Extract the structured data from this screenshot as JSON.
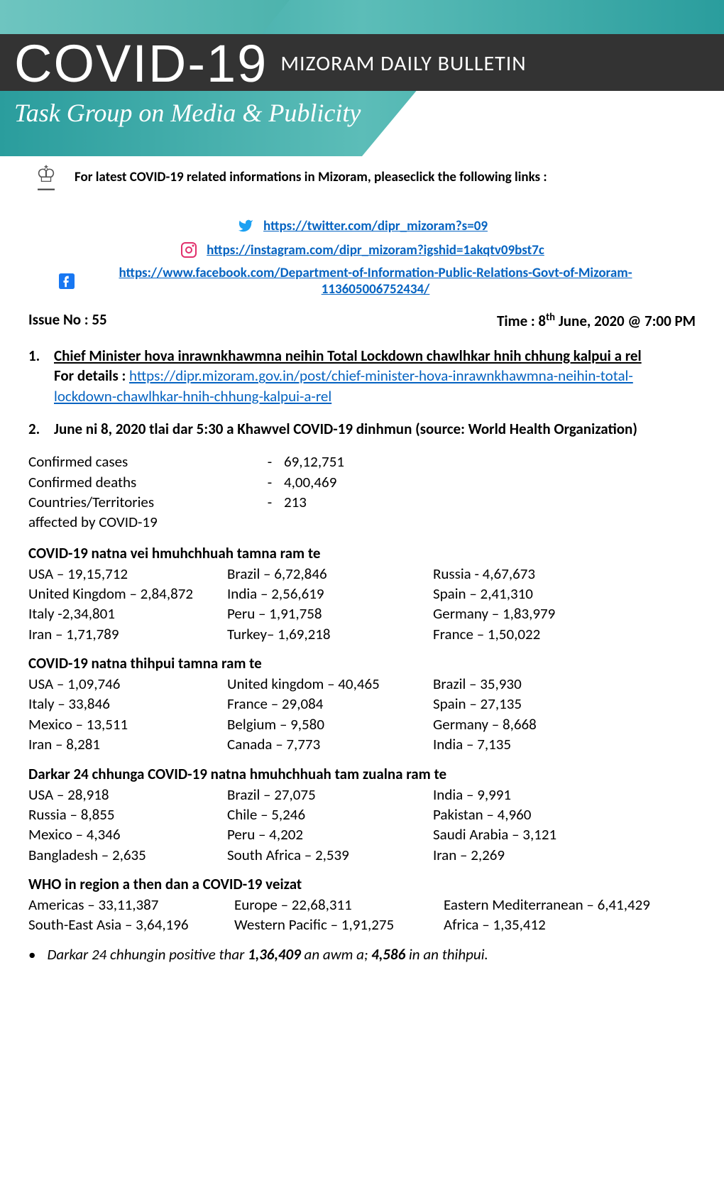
{
  "banner": {
    "title_main": "COVID-19",
    "title_sub": "MIZORAM DAILY BULLETIN",
    "task_group": "Task Group on Media & Publicity",
    "colors": {
      "teal_dark": "#2a9d9d",
      "teal_light": "#5cbdb8",
      "bar": "#333333",
      "text": "#ffffff"
    }
  },
  "info_line": "For latest COVID-19 related informations in Mizoram, pleaseclick the following links :",
  "links": {
    "twitter": "https://twitter.com/dipr_mizoram?s=09",
    "instagram": "https://instagram.com/dipr_mizoram?igshid=1akqtv09bst7c",
    "facebook": "https://www.facebook.com/Department-of-Information-Public-Relations-Govt-of-Mizoram-113605006752434/"
  },
  "issue": {
    "no_label": "Issue No : 55",
    "time_prefix": "Time : 8",
    "time_sup": "th",
    "time_suffix": " June, 2020  @ 7:00 PM"
  },
  "item1": {
    "num": "1.",
    "title": "Chief Minister hova inrawnkhawmna neihin Total Lockdown chawlhkar hnih chhung kalpui a rel",
    "details_label": "For details : ",
    "details_link": "https://dipr.mizoram.gov.in/post/chief-minister-hova-inrawnkhawmna-neihin-total-lockdown-chawlhkar-hnih-chhung-kalpui-a-rel"
  },
  "item2": {
    "num": "2.",
    "title": "June ni 8, 2020 tlai dar 5:30 a Khawvel COVID-19 dinhmun  (source: World Health Organization)"
  },
  "global_stats": [
    {
      "label": "Confirmed cases",
      "value": "69,12,751"
    },
    {
      "label": "Confirmed deaths",
      "value": "4,00,469"
    },
    {
      "label": "Countries/Territories",
      "value": "213"
    },
    {
      "label": "affected by COVID-19",
      "value": ""
    }
  ],
  "sections": {
    "cases": {
      "title": "COVID-19 natna vei hmuhchhuah tamna ram te",
      "rows": [
        [
          "USA – 19,15,712",
          "Brazil – 6,72,846",
          "Russia - 4,67,673"
        ],
        [
          "United Kingdom – 2,84,872",
          "India – 2,56,619",
          "Spain – 2,41,310"
        ],
        [
          "Italy -2,34,801",
          "Peru – 1,91,758",
          "Germany – 1,83,979"
        ],
        [
          "Iran  – 1,71,789",
          "Turkey– 1,69,218",
          "France – 1,50,022"
        ]
      ]
    },
    "deaths": {
      "title": "COVID-19 natna thihpui tamna ram te",
      "rows": [
        [
          "USA – 1,09,746",
          "United kingdom – 40,465",
          "Brazil – 35,930"
        ],
        [
          "Italy – 33,846",
          "France – 29,084",
          "Spain – 27,135"
        ],
        [
          "Mexico – 13,511",
          "Belgium – 9,580",
          "Germany – 8,668"
        ],
        [
          "Iran – 8,281",
          "Canada – 7,773",
          "India  – 7,135"
        ]
      ]
    },
    "last24": {
      "title": "Darkar 24 chhunga COVID-19 natna hmuhchhuah tam zualna ram te",
      "rows": [
        [
          "USA – 28,918",
          "Brazil – 27,075",
          "India – 9,991"
        ],
        [
          "Russia – 8,855",
          "Chile – 5,246",
          "Pakistan – 4,960"
        ],
        [
          "Mexico – 4,346",
          "Peru – 4,202",
          "Saudi Arabia  – 3,121"
        ],
        [
          "Bangladesh  – 2,635",
          "South Africa – 2,539",
          "Iran  – 2,269"
        ]
      ]
    },
    "regions": {
      "title": "WHO in region a then dan a COVID-19 veizat",
      "rows": [
        [
          "Americas – 33,11,387",
          "Europe – 22,68,311",
          "Eastern Mediterranean – 6,41,429"
        ],
        [
          "South-East Asia – 3,64,196",
          "Western Pacific – 1,91,275",
          "Africa – 1,35,412"
        ]
      ]
    }
  },
  "bullet": {
    "pre": "Darkar 24 chhungin positive thar ",
    "b1": "1,36,409",
    "mid": " an awm a; ",
    "b2": "4,586",
    "post": " in an thihpui."
  }
}
